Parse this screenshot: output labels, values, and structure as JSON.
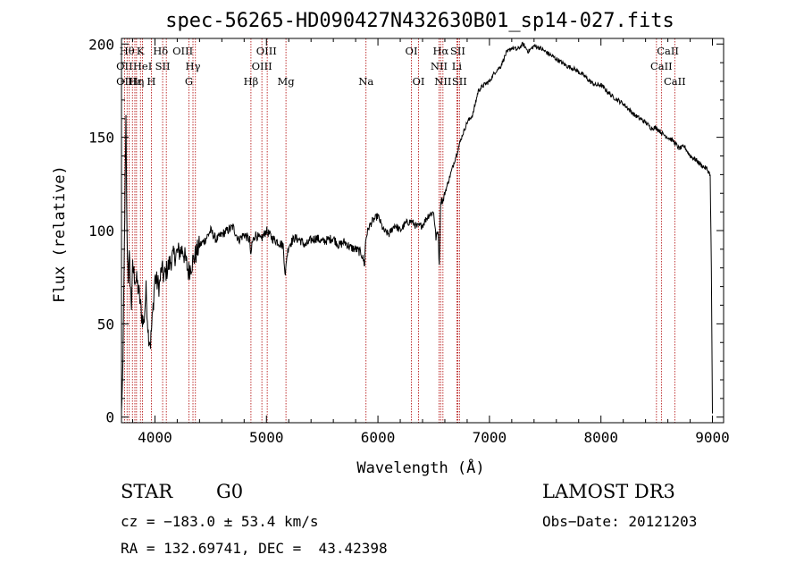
{
  "chart_data": {
    "type": "line",
    "title": "spec-56265-HD090427N432630B01_sp14-027.fits",
    "xlabel": "Wavelength (Å)",
    "ylabel": "Flux (relative)",
    "xlim": [
      3700,
      9100
    ],
    "ylim": [
      -3,
      203
    ],
    "x_ticks": [
      4000,
      5000,
      6000,
      7000,
      8000,
      9000
    ],
    "y_ticks": [
      0,
      50,
      100,
      150,
      200
    ],
    "series": [
      {
        "name": "flux",
        "x": [
          3700,
          3710,
          3720,
          3730,
          3740,
          3750,
          3760,
          3770,
          3780,
          3790,
          3800,
          3820,
          3840,
          3860,
          3880,
          3900,
          3920,
          3940,
          3960,
          3980,
          4000,
          4020,
          4040,
          4060,
          4080,
          4100,
          4150,
          4200,
          4250,
          4300,
          4350,
          4400,
          4450,
          4500,
          4550,
          4600,
          4650,
          4700,
          4750,
          4800,
          4850,
          4860,
          4870,
          4900,
          4950,
          5000,
          5050,
          5100,
          5150,
          5170,
          5180,
          5200,
          5250,
          5300,
          5350,
          5400,
          5450,
          5500,
          5550,
          5600,
          5650,
          5700,
          5750,
          5800,
          5850,
          5880,
          5890,
          5900,
          5920,
          5950,
          6000,
          6050,
          6100,
          6150,
          6200,
          6250,
          6300,
          6350,
          6400,
          6450,
          6500,
          6520,
          6540,
          6550,
          6560,
          6570,
          6580,
          6600,
          6650,
          6700,
          6750,
          6800,
          6850,
          6900,
          6950,
          7000,
          7050,
          7100,
          7150,
          7200,
          7250,
          7300,
          7350,
          7400,
          7450,
          7500,
          7550,
          7600,
          7650,
          7700,
          7750,
          7800,
          7850,
          7900,
          7950,
          8000,
          8050,
          8100,
          8150,
          8200,
          8250,
          8300,
          8350,
          8400,
          8450,
          8500,
          8550,
          8600,
          8650,
          8700,
          8750,
          8800,
          8850,
          8900,
          8950,
          8980,
          8990,
          9000
        ],
        "values": [
          3,
          20,
          60,
          110,
          158,
          95,
          75,
          85,
          70,
          60,
          80,
          75,
          72,
          65,
          55,
          50,
          68,
          45,
          40,
          55,
          75,
          72,
          70,
          80,
          75,
          78,
          85,
          88,
          90,
          78,
          85,
          92,
          95,
          100,
          95,
          98,
          100,
          102,
          95,
          98,
          95,
          85,
          93,
          98,
          95,
          100,
          96,
          94,
          92,
          75,
          85,
          92,
          96,
          95,
          92,
          95,
          96,
          94,
          95,
          96,
          92,
          94,
          91,
          90,
          88,
          82,
          95,
          98,
          102,
          105,
          108,
          100,
          98,
          103,
          100,
          104,
          105,
          102,
          103,
          108,
          110,
          96,
          100,
          80,
          112,
          118,
          115,
          120,
          130,
          140,
          150,
          158,
          162,
          175,
          178,
          180,
          185,
          188,
          195,
          198,
          197,
          200,
          196,
          199,
          198,
          196,
          194,
          192,
          190,
          188,
          187,
          185,
          183,
          180,
          178,
          178,
          175,
          172,
          170,
          168,
          165,
          162,
          160,
          158,
          155,
          155,
          152,
          150,
          148,
          144,
          145,
          140,
          138,
          135,
          133,
          130,
          80,
          2
        ]
      }
    ],
    "spectral_lines": [
      {
        "label": "Hθ",
        "x": 3750,
        "row": 0
      },
      {
        "label": "K",
        "x": 3870,
        "row": 0
      },
      {
        "label": "Hδ",
        "x": 4050,
        "row": 0
      },
      {
        "label": "OIII",
        "x": 4250,
        "row": 0
      },
      {
        "label": "OIII",
        "x": 5000,
        "row": 0
      },
      {
        "label": "OI",
        "x": 6300,
        "row": 0
      },
      {
        "label": "Hα",
        "x": 6563,
        "row": 0
      },
      {
        "label": "SII",
        "x": 6716,
        "row": 0
      },
      {
        "label": "CaII",
        "x": 8600,
        "row": 0
      },
      {
        "label": "OII",
        "x": 3727,
        "row": 1
      },
      {
        "label": "HeI",
        "x": 3889,
        "row": 1
      },
      {
        "label": "SII",
        "x": 4069,
        "row": 1
      },
      {
        "label": "Hγ",
        "x": 4341,
        "row": 1
      },
      {
        "label": "OIII",
        "x": 4959,
        "row": 1
      },
      {
        "label": "NII",
        "x": 6548,
        "row": 1
      },
      {
        "label": "Li",
        "x": 6708,
        "row": 1
      },
      {
        "label": "CaII",
        "x": 8542,
        "row": 1
      },
      {
        "label": "OII",
        "x": 3727,
        "row": 2
      },
      {
        "label": "Hε",
        "x": 3820,
        "row": 2
      },
      {
        "label": "Hη",
        "x": 3835,
        "row": 2
      },
      {
        "label": "H",
        "x": 3968,
        "row": 2
      },
      {
        "label": "G",
        "x": 4305,
        "row": 2
      },
      {
        "label": "Hβ",
        "x": 4861,
        "row": 2
      },
      {
        "label": "Mg",
        "x": 5175,
        "row": 2
      },
      {
        "label": "Na",
        "x": 5893,
        "row": 2
      },
      {
        "label": "OI",
        "x": 6364,
        "row": 2
      },
      {
        "label": "NII",
        "x": 6583,
        "row": 2
      },
      {
        "label": "SII",
        "x": 6731,
        "row": 2
      },
      {
        "label": "CaII",
        "x": 8662,
        "row": 2
      }
    ],
    "line_markers": [
      3727,
      3750,
      3770,
      3798,
      3820,
      3835,
      3870,
      3889,
      3968,
      4069,
      4102,
      4305,
      4341,
      4363,
      4861,
      4959,
      5007,
      5175,
      5893,
      6300,
      6364,
      6548,
      6563,
      6583,
      6708,
      6716,
      6731,
      8498,
      8542,
      8662
    ]
  },
  "info": {
    "object_type": "STAR",
    "subclass": "G0",
    "survey": "LAMOST DR3",
    "cz": "cz = −183.0 ± 53.4 km/s",
    "obs_date": "Obs−Date: 20121203",
    "coords": "RA = 132.69741, DEC =  43.42398"
  }
}
